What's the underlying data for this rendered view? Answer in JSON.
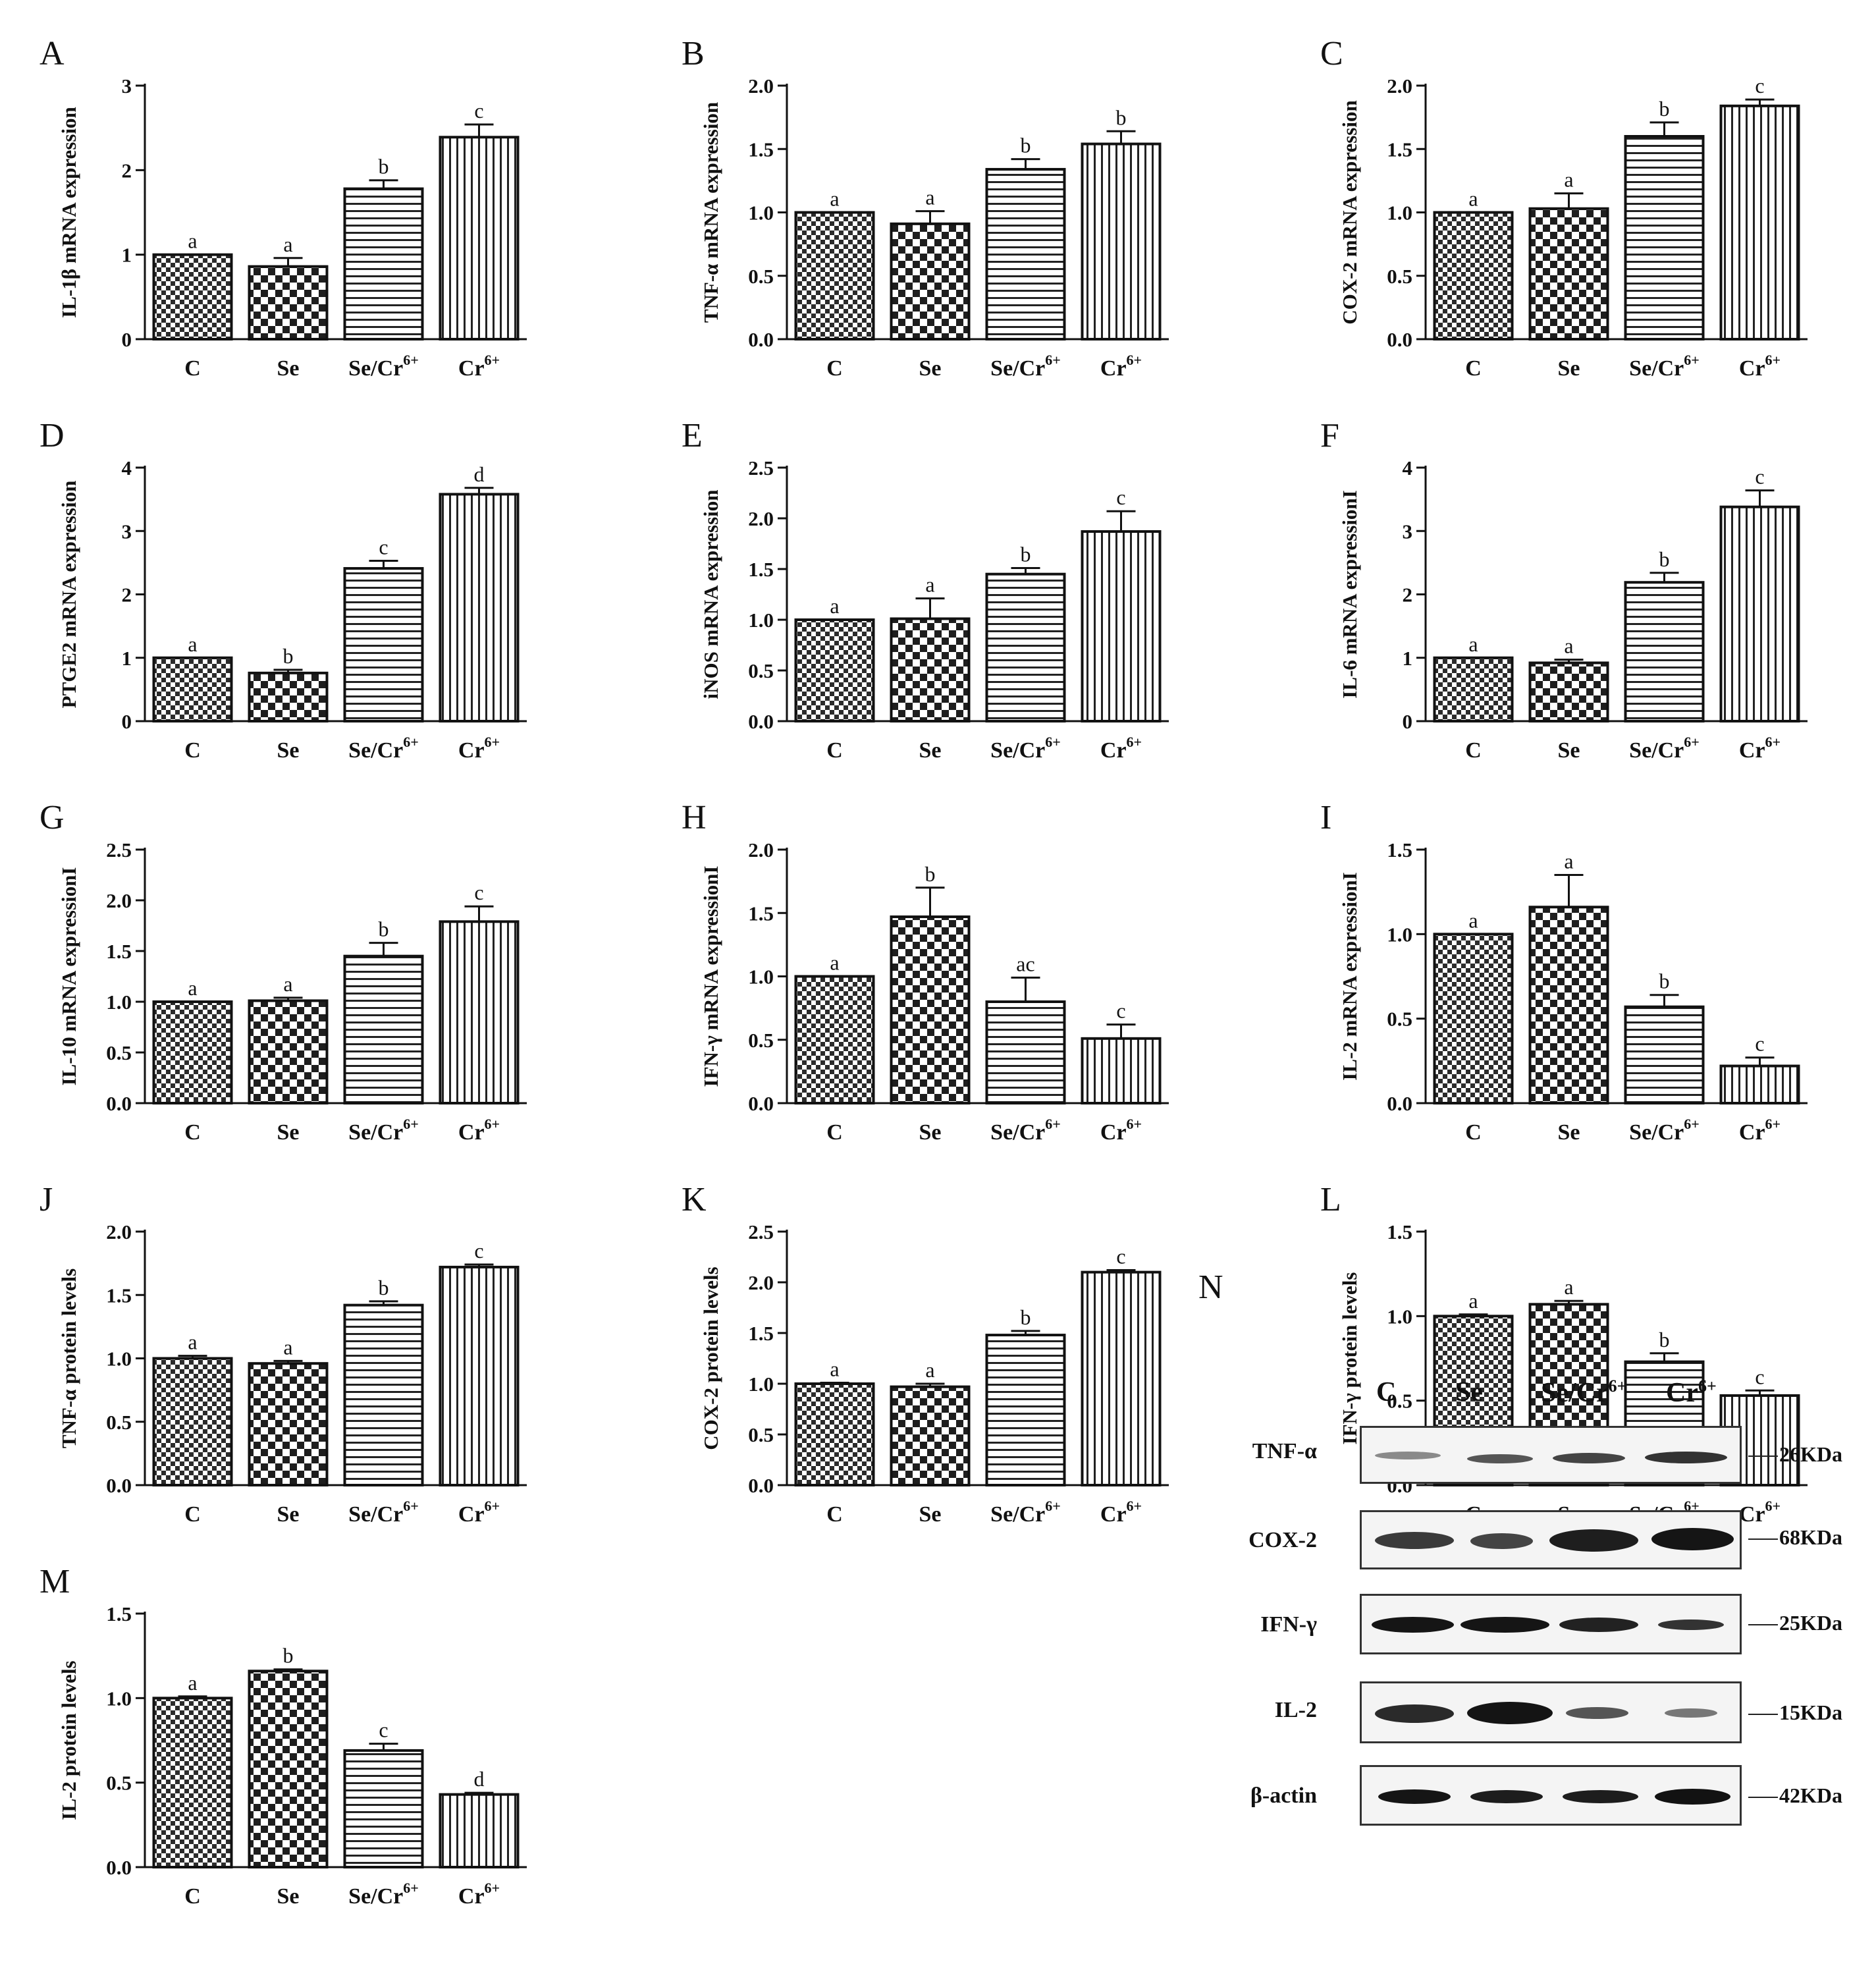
{
  "figure": {
    "panels": [
      "A",
      "B",
      "C",
      "D",
      "E",
      "F",
      "G",
      "H",
      "I",
      "J",
      "K",
      "L",
      "M"
    ]
  },
  "chart_data": [
    {
      "id": "A",
      "type": "bar",
      "ylabel": "IL-1β mRNA  expression",
      "ylim": [
        0,
        3
      ],
      "yticks": [
        "0",
        "1",
        "2",
        "3"
      ],
      "categories": [
        "C",
        "Se",
        "Se/Cr6+",
        "Cr6+"
      ],
      "values": [
        1.0,
        0.86,
        1.78,
        2.39
      ],
      "errors": [
        0.0,
        0.1,
        0.1,
        0.15
      ],
      "letters": [
        "a",
        "a",
        "b",
        "c"
      ]
    },
    {
      "id": "B",
      "type": "bar",
      "ylabel": "TNF-α mRNA expression",
      "ylim": [
        0,
        2.0
      ],
      "yticks": [
        "0.0",
        "0.5",
        "1.0",
        "1.5",
        "2.0"
      ],
      "categories": [
        "C",
        "Se",
        "Se/Cr6+",
        "Cr6+"
      ],
      "values": [
        1.0,
        0.91,
        1.34,
        1.54
      ],
      "errors": [
        0.0,
        0.1,
        0.08,
        0.1
      ],
      "letters": [
        "a",
        "a",
        "b",
        "b"
      ]
    },
    {
      "id": "C",
      "type": "bar",
      "ylabel": "COX-2 mRNA expression",
      "ylim": [
        0,
        2.0
      ],
      "yticks": [
        "0.0",
        "0.5",
        "1.0",
        "1.5",
        "2.0"
      ],
      "categories": [
        "C",
        "Se",
        "Se/Cr6+",
        "Cr6+"
      ],
      "values": [
        1.0,
        1.03,
        1.6,
        1.84
      ],
      "errors": [
        0.0,
        0.12,
        0.11,
        0.05
      ],
      "letters": [
        "a",
        "a",
        "b",
        "c"
      ]
    },
    {
      "id": "D",
      "type": "bar",
      "ylabel": "PTGE2 mRNA expression",
      "ylim": [
        0,
        4
      ],
      "yticks": [
        "0",
        "1",
        "2",
        "3",
        "4"
      ],
      "categories": [
        "C",
        "Se",
        "Se/Cr6+",
        "Cr6+"
      ],
      "values": [
        1.0,
        0.76,
        2.41,
        3.58
      ],
      "errors": [
        0.0,
        0.05,
        0.12,
        0.1
      ],
      "letters": [
        "a",
        "b",
        "c",
        "d"
      ]
    },
    {
      "id": "E",
      "type": "bar",
      "ylabel": "iNOS mRNA expression",
      "ylim": [
        0,
        2.5
      ],
      "yticks": [
        "0.0",
        "0.5",
        "1.0",
        "1.5",
        "2.0",
        "2.5"
      ],
      "categories": [
        "C",
        "Se",
        "Se/Cr6+",
        "Cr6+"
      ],
      "values": [
        1.0,
        1.01,
        1.45,
        1.87
      ],
      "errors": [
        0.0,
        0.2,
        0.06,
        0.2
      ],
      "letters": [
        "a",
        "a",
        "b",
        "c"
      ]
    },
    {
      "id": "F",
      "type": "bar",
      "ylabel": "IL-6 mRNA expressionI",
      "ylim": [
        0,
        4
      ],
      "yticks": [
        "0",
        "1",
        "2",
        "3",
        "4"
      ],
      "categories": [
        "C",
        "Se",
        "Se/Cr6+",
        "Cr6+"
      ],
      "values": [
        1.0,
        0.92,
        2.19,
        3.38
      ],
      "errors": [
        0.0,
        0.05,
        0.15,
        0.26
      ],
      "letters": [
        "a",
        "a",
        "b",
        "c"
      ]
    },
    {
      "id": "G",
      "type": "bar",
      "ylabel": "IL-10 mRNA expressionI",
      "ylim": [
        0,
        2.5
      ],
      "yticks": [
        "0.0",
        "0.5",
        "1.0",
        "1.5",
        "2.0",
        "2.5"
      ],
      "categories": [
        "C",
        "Se",
        "Se/Cr6+",
        "Cr6+"
      ],
      "values": [
        1.0,
        1.01,
        1.45,
        1.79
      ],
      "errors": [
        0.0,
        0.03,
        0.13,
        0.15
      ],
      "letters": [
        "a",
        "a",
        "b",
        "c"
      ]
    },
    {
      "id": "H",
      "type": "bar",
      "ylabel": "IFN-γ mRNA expressionI",
      "ylim": [
        0,
        2.0
      ],
      "yticks": [
        "0.0",
        "0.5",
        "1.0",
        "1.5",
        "2.0"
      ],
      "categories": [
        "C",
        "Se",
        "Se/Cr6+",
        "Cr6+"
      ],
      "values": [
        1.0,
        1.47,
        0.8,
        0.51
      ],
      "errors": [
        0.0,
        0.23,
        0.19,
        0.11
      ],
      "letters": [
        "a",
        "b",
        "ac",
        "c"
      ]
    },
    {
      "id": "I",
      "type": "bar",
      "ylabel": "IL-2 mRNA expressionI",
      "ylim": [
        0,
        1.5
      ],
      "yticks": [
        "0.0",
        "0.5",
        "1.0",
        "1.5"
      ],
      "categories": [
        "C",
        "Se",
        "Se/Cr6+",
        "Cr6+"
      ],
      "values": [
        1.0,
        1.16,
        0.57,
        0.22
      ],
      "errors": [
        0.0,
        0.19,
        0.07,
        0.05
      ],
      "letters": [
        "a",
        "a",
        "b",
        "c"
      ]
    },
    {
      "id": "J",
      "type": "bar",
      "ylabel": "TNF-α protein levels",
      "ylim": [
        0,
        2.0
      ],
      "yticks": [
        "0.0",
        "0.5",
        "1.0",
        "1.5",
        "2.0"
      ],
      "categories": [
        "C",
        "Se",
        "Se/Cr6+",
        "Cr6+"
      ],
      "values": [
        1.0,
        0.96,
        1.42,
        1.72
      ],
      "errors": [
        0.02,
        0.02,
        0.03,
        0.02
      ],
      "letters": [
        "a",
        "a",
        "b",
        "c"
      ]
    },
    {
      "id": "K",
      "type": "bar",
      "ylabel": "COX-2 protein levels",
      "ylim": [
        0,
        2.5
      ],
      "yticks": [
        "0.0",
        "0.5",
        "1.0",
        "1.5",
        "2.0",
        "2.5"
      ],
      "categories": [
        "C",
        "Se",
        "Se/Cr6+",
        "Cr6+"
      ],
      "values": [
        1.0,
        0.97,
        1.48,
        2.1
      ],
      "errors": [
        0.01,
        0.03,
        0.04,
        0.02
      ],
      "letters": [
        "a",
        "a",
        "b",
        "c"
      ]
    },
    {
      "id": "L",
      "type": "bar",
      "ylabel": "IFN-γ protein levels",
      "ylim": [
        0,
        1.5
      ],
      "yticks": [
        "0.0",
        "0.5",
        "1.0",
        "1.5"
      ],
      "categories": [
        "C",
        "Se",
        "Se/Cr6+",
        "Cr6+"
      ],
      "values": [
        1.0,
        1.07,
        0.73,
        0.53
      ],
      "errors": [
        0.01,
        0.02,
        0.05,
        0.03
      ],
      "letters": [
        "a",
        "a",
        "b",
        "c"
      ]
    },
    {
      "id": "M",
      "type": "bar",
      "ylabel": "IL-2 protein levels",
      "ylim": [
        0,
        1.5
      ],
      "yticks": [
        "0.0",
        "0.5",
        "1.0",
        "1.5"
      ],
      "categories": [
        "C",
        "Se",
        "Se/Cr6+",
        "Cr6+"
      ],
      "values": [
        1.0,
        1.16,
        0.69,
        0.43
      ],
      "errors": [
        0.01,
        0.01,
        0.04,
        0.01
      ],
      "letters": [
        "a",
        "b",
        "c",
        "d"
      ]
    }
  ],
  "blot": {
    "panel_label": "N",
    "lanes": [
      "C",
      "Se",
      "Se/Cr",
      "Cr"
    ],
    "lane_sups": [
      "",
      "",
      "6+",
      "6+"
    ],
    "rows": [
      {
        "label": "TNF-α",
        "mw": "26KDa"
      },
      {
        "label": "COX-2",
        "mw": "68KDa"
      },
      {
        "label": "IFN-γ",
        "mw": "25KDa"
      },
      {
        "label": "IL-2",
        "mw": "15KDa"
      },
      {
        "label": "β-actin",
        "mw": "42KDa"
      }
    ]
  }
}
